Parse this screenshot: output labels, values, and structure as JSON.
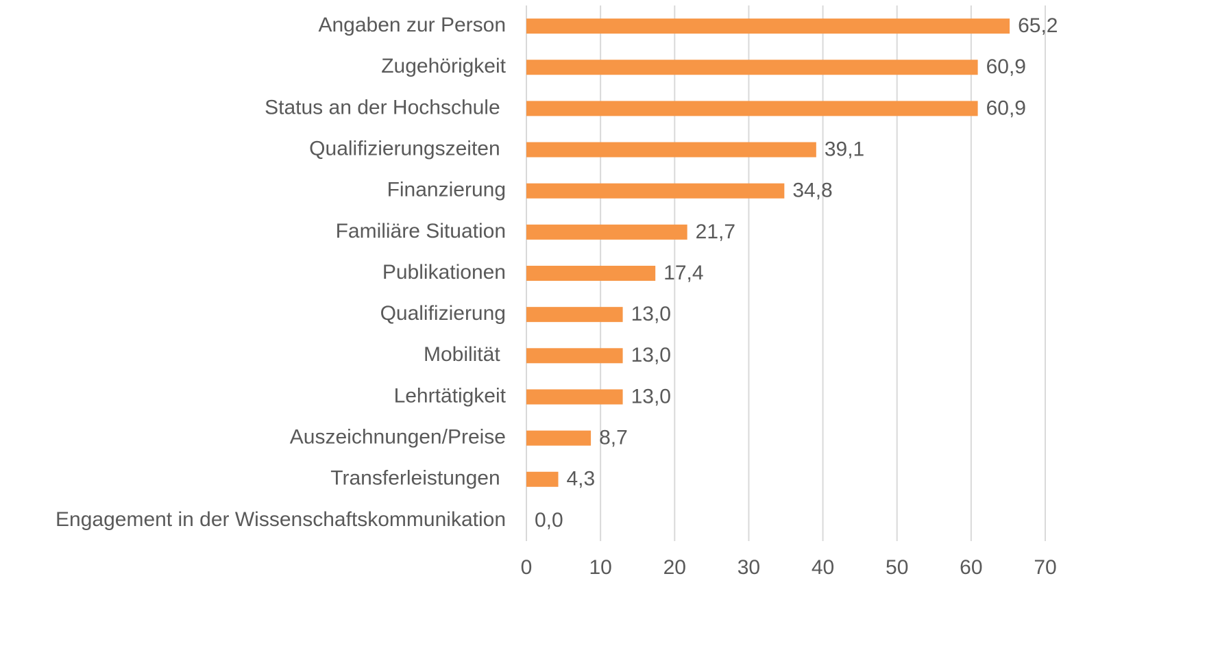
{
  "chart_data": {
    "type": "bar",
    "orientation": "horizontal",
    "categories": [
      "Angaben zur Person",
      "Zugehörigkeit",
      "Status an der Hochschule ",
      "Qualifizierungszeiten ",
      "Finanzierung",
      "Familiäre Situation",
      "Publikationen",
      "Qualifizierung",
      "Mobilität ",
      "Lehrtätigkeit",
      "Auszeichnungen/Preise",
      "Transferleistungen ",
      "Engagement in der Wissenschaftskommunikation"
    ],
    "values": [
      65.2,
      60.9,
      60.9,
      39.1,
      34.8,
      21.7,
      17.4,
      13.0,
      13.0,
      13.0,
      8.7,
      4.3,
      0.0
    ],
    "value_labels": [
      "65,2",
      "60,9",
      "60,9",
      "39,1",
      "34,8",
      "21,7",
      "17,4",
      "13,0",
      "13,0",
      "13,0",
      "8,7",
      "4,3",
      "0,0"
    ],
    "color": "#f79646",
    "xlim": [
      0,
      70
    ],
    "xticks": [
      0,
      10,
      20,
      30,
      40,
      50,
      60,
      70
    ],
    "grid": true
  }
}
